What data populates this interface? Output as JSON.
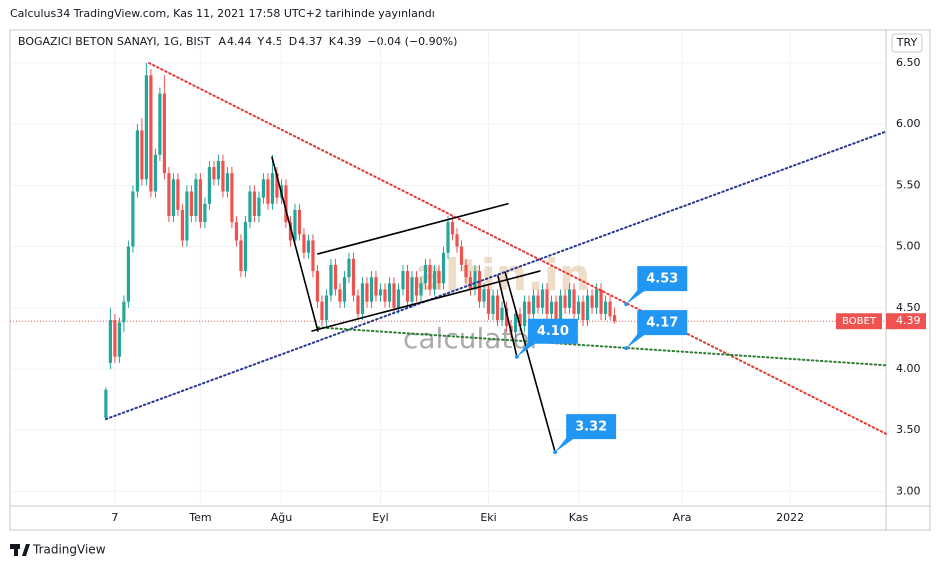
{
  "header": {
    "published": "Calculus34 TradingView.com, Kas 11, 2021 17:58 UTC+2 tarihinde yayınlandı",
    "currency": "TRY",
    "footer_logo": "TradingView"
  },
  "chart_data": {
    "type": "candlestick",
    "title": "BOGAZICI BETON SANAYI, 1G, BIST",
    "ohlc_header": [
      {
        "label": "A",
        "value": 4.44
      },
      {
        "label": "Y",
        "value": 4.5
      },
      {
        "label": "D",
        "value": 4.37
      },
      {
        "label": "K",
        "value": 4.39
      }
    ],
    "change": "−0.04 (−0.90%)",
    "up_color": "#26a69a",
    "down_color": "#ef5350",
    "xlim": [
      -21.3,
      173.3
    ],
    "ylim": [
      2.88,
      6.77
    ],
    "xticks": [
      {
        "value": 2,
        "label": "7"
      },
      {
        "value": 21,
        "label": "Tem"
      },
      {
        "value": 39,
        "label": "Ağu"
      },
      {
        "value": 61,
        "label": "Eyl"
      },
      {
        "value": 85,
        "label": "Eki"
      },
      {
        "value": 105,
        "label": "Kas"
      },
      {
        "value": 128,
        "label": "Ara"
      },
      {
        "value": 152,
        "label": "2022"
      }
    ],
    "yticks": [
      {
        "value": 3,
        "label": "3.00"
      },
      {
        "value": 3.5,
        "label": "3.50"
      },
      {
        "value": 4,
        "label": "4.00"
      },
      {
        "value": 4.5,
        "label": "4.50"
      },
      {
        "value": 5,
        "label": "5.00"
      },
      {
        "value": 5.5,
        "label": "5.50"
      },
      {
        "value": 6,
        "label": "6.00"
      },
      {
        "value": 6.5,
        "label": "6.50"
      }
    ],
    "grid": true,
    "candles": [
      [
        3.6,
        3.85,
        3.58,
        3.83
      ],
      [
        4.05,
        4.5,
        4.0,
        4.4
      ],
      [
        4.4,
        4.45,
        4.05,
        4.1
      ],
      [
        4.1,
        4.42,
        4.05,
        4.38
      ],
      [
        4.38,
        4.6,
        4.3,
        4.55
      ],
      [
        4.55,
        5.05,
        4.5,
        5.0
      ],
      [
        5.0,
        5.5,
        4.95,
        5.45
      ],
      [
        5.45,
        6.0,
        5.4,
        5.95
      ],
      [
        5.95,
        6.05,
        5.5,
        5.55
      ],
      [
        5.55,
        6.5,
        5.5,
        6.4
      ],
      [
        6.4,
        6.45,
        5.4,
        5.45
      ],
      [
        5.45,
        5.8,
        5.4,
        5.75
      ],
      [
        5.75,
        6.3,
        5.7,
        6.25
      ],
      [
        6.25,
        6.4,
        5.55,
        5.6
      ],
      [
        5.6,
        5.65,
        5.2,
        5.25
      ],
      [
        5.25,
        5.6,
        5.2,
        5.55
      ],
      [
        5.55,
        5.6,
        5.25,
        5.3
      ],
      [
        5.3,
        5.35,
        5.0,
        5.05
      ],
      [
        5.05,
        5.5,
        5.0,
        5.45
      ],
      [
        5.45,
        5.5,
        5.2,
        5.25
      ],
      [
        5.25,
        5.6,
        5.2,
        5.55
      ],
      [
        5.55,
        5.6,
        5.15,
        5.2
      ],
      [
        5.2,
        5.4,
        5.15,
        5.35
      ],
      [
        5.35,
        5.7,
        5.3,
        5.65
      ],
      [
        5.65,
        5.7,
        5.5,
        5.55
      ],
      [
        5.55,
        5.75,
        5.5,
        5.7
      ],
      [
        5.7,
        5.75,
        5.4,
        5.45
      ],
      [
        5.45,
        5.65,
        5.4,
        5.6
      ],
      [
        5.6,
        5.65,
        5.15,
        5.2
      ],
      [
        5.2,
        5.25,
        5.0,
        5.05
      ],
      [
        5.05,
        5.1,
        4.75,
        4.8
      ],
      [
        4.8,
        5.25,
        4.75,
        5.2
      ],
      [
        5.2,
        5.5,
        5.15,
        5.45
      ],
      [
        5.45,
        5.5,
        5.2,
        5.25
      ],
      [
        5.25,
        5.45,
        5.2,
        5.4
      ],
      [
        5.4,
        5.6,
        5.35,
        5.55
      ],
      [
        5.55,
        5.6,
        5.3,
        5.35
      ],
      [
        5.35,
        5.75,
        5.3,
        5.6
      ],
      [
        5.6,
        5.65,
        5.35,
        5.4
      ],
      [
        5.4,
        5.55,
        5.35,
        5.5
      ],
      [
        5.5,
        5.55,
        5.15,
        5.2
      ],
      [
        5.2,
        5.25,
        5.0,
        5.05
      ],
      [
        5.05,
        5.35,
        5.0,
        5.3
      ],
      [
        5.3,
        5.35,
        5.05,
        5.1
      ],
      [
        5.1,
        5.15,
        4.9,
        4.95
      ],
      [
        4.95,
        5.1,
        4.9,
        5.05
      ],
      [
        5.05,
        5.1,
        4.75,
        4.8
      ],
      [
        4.8,
        4.85,
        4.5,
        4.55
      ],
      [
        4.55,
        4.6,
        4.35,
        4.4
      ],
      [
        4.4,
        4.65,
        4.35,
        4.6
      ],
      [
        4.6,
        4.9,
        4.55,
        4.85
      ],
      [
        4.85,
        4.9,
        4.6,
        4.65
      ],
      [
        4.65,
        4.7,
        4.5,
        4.55
      ],
      [
        4.55,
        4.8,
        4.5,
        4.75
      ],
      [
        4.75,
        4.95,
        4.7,
        4.9
      ],
      [
        4.9,
        4.95,
        4.55,
        4.6
      ],
      [
        4.6,
        4.65,
        4.4,
        4.45
      ],
      [
        4.45,
        4.75,
        4.4,
        4.7
      ],
      [
        4.7,
        4.75,
        4.5,
        4.55
      ],
      [
        4.55,
        4.8,
        4.5,
        4.75
      ],
      [
        4.75,
        4.8,
        4.55,
        4.6
      ],
      [
        4.6,
        4.7,
        4.55,
        4.65
      ],
      [
        4.65,
        4.7,
        4.5,
        4.55
      ],
      [
        4.55,
        4.75,
        4.5,
        4.7
      ],
      [
        4.7,
        4.75,
        4.45,
        4.5
      ],
      [
        4.5,
        4.7,
        4.45,
        4.65
      ],
      [
        4.65,
        4.85,
        4.6,
        4.8
      ],
      [
        4.8,
        4.85,
        4.5,
        4.55
      ],
      [
        4.55,
        4.8,
        4.5,
        4.75
      ],
      [
        4.75,
        4.8,
        4.55,
        4.6
      ],
      [
        4.6,
        4.75,
        4.55,
        4.7
      ],
      [
        4.7,
        4.9,
        4.65,
        4.85
      ],
      [
        4.85,
        4.9,
        4.6,
        4.65
      ],
      [
        4.65,
        4.85,
        4.6,
        4.8
      ],
      [
        4.8,
        4.85,
        4.65,
        4.7
      ],
      [
        4.7,
        5.0,
        4.65,
        4.95
      ],
      [
        4.95,
        5.25,
        4.9,
        5.2
      ],
      [
        5.2,
        5.25,
        5.05,
        5.1
      ],
      [
        5.1,
        5.15,
        4.95,
        5.0
      ],
      [
        5.0,
        5.05,
        4.8,
        4.85
      ],
      [
        4.85,
        4.9,
        4.7,
        4.75
      ],
      [
        4.75,
        4.8,
        4.6,
        4.65
      ],
      [
        4.65,
        4.85,
        4.6,
        4.8
      ],
      [
        4.8,
        4.85,
        4.5,
        4.55
      ],
      [
        4.55,
        4.7,
        4.5,
        4.65
      ],
      [
        4.65,
        4.7,
        4.4,
        4.45
      ],
      [
        4.45,
        4.65,
        4.4,
        4.6
      ],
      [
        4.6,
        4.65,
        4.35,
        4.4
      ],
      [
        4.4,
        4.55,
        4.35,
        4.5
      ],
      [
        4.5,
        4.55,
        4.3,
        4.35
      ],
      [
        4.35,
        4.4,
        4.25,
        4.3
      ],
      [
        4.3,
        4.5,
        4.25,
        4.45
      ],
      [
        4.45,
        4.5,
        4.3,
        4.35
      ],
      [
        4.35,
        4.6,
        4.3,
        4.55
      ],
      [
        4.55,
        4.6,
        4.4,
        4.45
      ],
      [
        4.45,
        4.65,
        4.4,
        4.6
      ],
      [
        4.6,
        4.65,
        4.45,
        4.5
      ],
      [
        4.5,
        4.7,
        4.45,
        4.65
      ],
      [
        4.65,
        4.7,
        4.4,
        4.45
      ],
      [
        4.45,
        4.6,
        4.4,
        4.55
      ],
      [
        4.55,
        4.6,
        4.35,
        4.4
      ],
      [
        4.4,
        4.65,
        4.35,
        4.6
      ],
      [
        4.6,
        4.65,
        4.45,
        4.5
      ],
      [
        4.5,
        4.7,
        4.45,
        4.65
      ],
      [
        4.65,
        4.7,
        4.4,
        4.45
      ],
      [
        4.45,
        4.6,
        4.4,
        4.55
      ],
      [
        4.55,
        4.6,
        4.35,
        4.4
      ],
      [
        4.4,
        4.65,
        4.35,
        4.6
      ],
      [
        4.6,
        4.65,
        4.45,
        4.5
      ],
      [
        4.5,
        4.7,
        4.45,
        4.65
      ],
      [
        4.65,
        4.7,
        4.4,
        4.45
      ],
      [
        4.45,
        4.6,
        4.4,
        4.55
      ],
      [
        4.55,
        4.6,
        4.4,
        4.43
      ],
      [
        4.44,
        4.5,
        4.37,
        4.39
      ]
    ],
    "price_line": {
      "name": "BOBET",
      "value": 4.39,
      "color": "#ef5350"
    },
    "drawings": [
      {
        "color": "#e53935",
        "dotted": true,
        "points": [
          [
            9.6,
            6.5
          ],
          [
            173.3,
            3.47
          ]
        ]
      },
      {
        "color": "#283593",
        "dotted": true,
        "points": [
          [
            0,
            3.59
          ],
          [
            173.3,
            5.94
          ]
        ]
      },
      {
        "color": "#2e7d32",
        "dotted": true,
        "points": [
          [
            47.1,
            4.34
          ],
          [
            173.3,
            4.03
          ]
        ]
      },
      {
        "color": "#000000",
        "dotted": false,
        "points": [
          [
            36.9,
            5.73
          ],
          [
            47.1,
            4.31
          ]
        ]
      },
      {
        "color": "#000000",
        "dotted": false,
        "points": [
          [
            47.1,
            4.94
          ],
          [
            89.3,
            5.35
          ]
        ]
      },
      {
        "color": "#000000",
        "dotted": false,
        "points": [
          [
            45.8,
            4.31
          ],
          [
            96.4,
            4.8
          ]
        ]
      },
      {
        "color": "#000000",
        "dotted": false,
        "points": [
          [
            87.1,
            4.76
          ],
          [
            91.3,
            4.1
          ]
        ]
      },
      {
        "color": "#000000",
        "dotted": false,
        "points": [
          [
            88.7,
            4.79
          ],
          [
            99.8,
            3.32
          ]
        ]
      }
    ],
    "callouts": [
      {
        "x": 115.6,
        "value": 4.53
      },
      {
        "x": 115.6,
        "value": 4.17
      },
      {
        "x": 91.3,
        "value": 4.1,
        "label": "4.10"
      },
      {
        "x": 99.8,
        "value": 3.32
      }
    ],
    "watermark": [
      "altin.in",
      "calculator"
    ]
  }
}
